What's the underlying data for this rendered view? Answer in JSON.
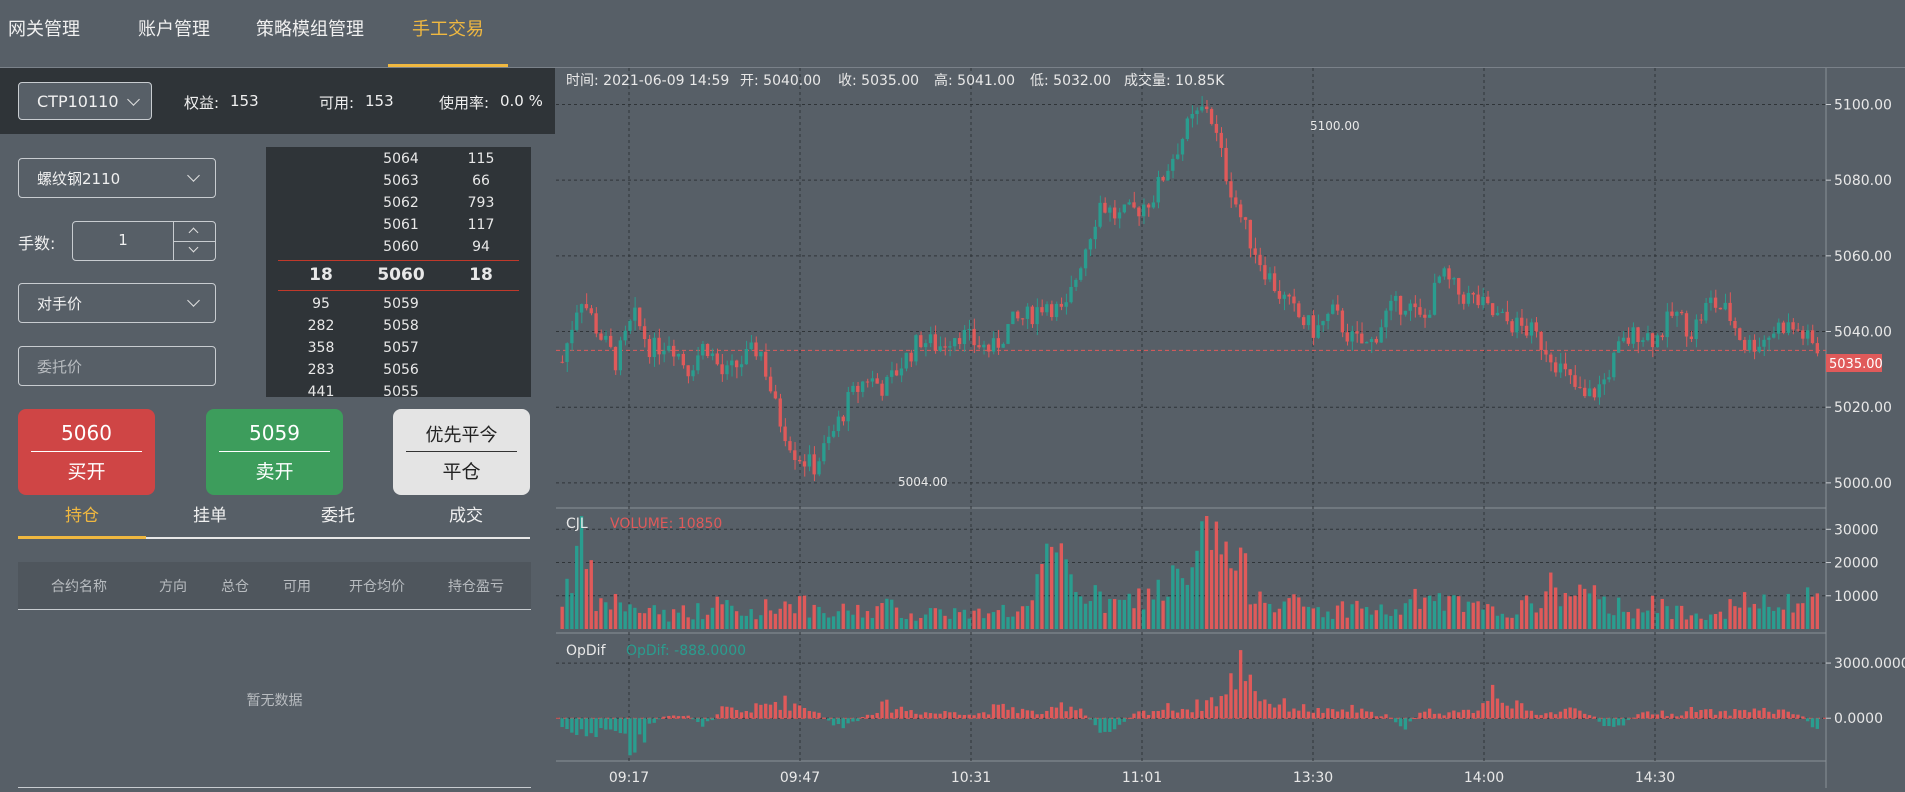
{
  "nav": {
    "items": [
      {
        "label": "网关管理",
        "active": false
      },
      {
        "label": "账户管理",
        "active": false
      },
      {
        "label": "策略模组管理",
        "active": false
      },
      {
        "label": "手工交易",
        "active": true
      }
    ]
  },
  "account": {
    "selected": "CTP10110",
    "equity_label": "权益:",
    "equity_value": "153",
    "available_label": "可用:",
    "available_value": "153",
    "usage_label": "使用率:",
    "usage_value": "0.0 %"
  },
  "order_form": {
    "contract": "螺纹钢2110",
    "qty_label": "手数:",
    "qty_value": "1",
    "price_type": "对手价",
    "price_placeholder": "委托价"
  },
  "orderbook": {
    "asks": [
      {
        "price": "5064",
        "vol": "115"
      },
      {
        "price": "5063",
        "vol": "66"
      },
      {
        "price": "5062",
        "vol": "793"
      },
      {
        "price": "5061",
        "vol": "117"
      },
      {
        "price": "5060",
        "vol": "94"
      }
    ],
    "last": {
      "bid_vol": "18",
      "price": "5060",
      "ask_vol": "18"
    },
    "bids": [
      {
        "vol": "95",
        "price": "5059"
      },
      {
        "vol": "282",
        "price": "5058"
      },
      {
        "vol": "358",
        "price": "5057"
      },
      {
        "vol": "283",
        "price": "5056"
      },
      {
        "vol": "441",
        "price": "5055"
      }
    ]
  },
  "actions": {
    "buy": {
      "price": "5060",
      "label": "买开",
      "color": "#d04646"
    },
    "sell": {
      "price": "5059",
      "label": "卖开",
      "color": "#3f9f5f"
    },
    "close": {
      "top": "优先平今",
      "label": "平仓"
    }
  },
  "position_tabs": [
    {
      "label": "持仓",
      "active": true
    },
    {
      "label": "挂单",
      "active": false
    },
    {
      "label": "委托",
      "active": false
    },
    {
      "label": "成交",
      "active": false
    }
  ],
  "position_table": {
    "columns": [
      "合约名称",
      "方向",
      "总仓",
      "可用",
      "开仓均价",
      "持仓盈亏"
    ],
    "empty_text": "暂无数据"
  },
  "chart_info": {
    "time": "时间: 2021-06-09 14:59",
    "open": "开: 5040.00",
    "close": "收: 5035.00",
    "high": "高: 5041.00",
    "low": "低: 5032.00",
    "volume": "成交量: 10.85K",
    "max_label": "5100.00",
    "min_label": "5004.00",
    "current_label": "5035.00",
    "vol_title": "CJL",
    "vol_value": "VOLUME: 10850",
    "op_title": "OpDif",
    "op_value": "OpDif: -888.0000"
  },
  "chart_data": {
    "type": "candlestick",
    "price_ticks": [
      "5100.00",
      "5080.00",
      "5060.00",
      "5040.00",
      "5020.00",
      "5000.00"
    ],
    "price_range": [
      4996,
      5107
    ],
    "volume_ticks": [
      "30000",
      "20000",
      "10000"
    ],
    "volume_range": [
      0,
      34000
    ],
    "opdif_ticks": [
      "3000.0000",
      "0.0000"
    ],
    "opdif_range": [
      -2000,
      4200
    ],
    "x_ticks": [
      "09:17",
      "09:47",
      "10:31",
      "11:01",
      "13:30",
      "14:00",
      "14:30"
    ],
    "current_price": 5035,
    "colors": {
      "up": "#2a9d8f",
      "down": "#e05a5a",
      "grid": "#2f3438"
    },
    "anchors": [
      5032,
      5050,
      5040,
      5032,
      5044,
      5035,
      5038,
      5030,
      5037,
      5028,
      5032,
      5036,
      5018,
      5008,
      5004,
      5012,
      5022,
      5028,
      5025,
      5032,
      5038,
      5036,
      5040,
      5037,
      5035,
      5042,
      5044,
      5048,
      5044,
      5060,
      5074,
      5070,
      5072,
      5076,
      5086,
      5095,
      5100,
      5082,
      5068,
      5058,
      5050,
      5044,
      5040,
      5045,
      5038,
      5036,
      5045,
      5048,
      5042,
      5055,
      5050,
      5048,
      5044,
      5042,
      5040,
      5035,
      5028,
      5022,
      5026,
      5036,
      5040,
      5038,
      5045,
      5040,
      5048,
      5045,
      5036,
      5038,
      5042,
      5040,
      5035
    ],
    "volume_anchors": [
      9000,
      27000,
      6000,
      9000,
      5000,
      7000,
      4000,
      6000,
      5000,
      8000,
      4000,
      6000,
      7000,
      9000,
      5000,
      4000,
      6000,
      5000,
      7000,
      5000,
      4000,
      6000,
      5000,
      4000,
      7000,
      5000,
      6000,
      18000,
      20000,
      12000,
      8000,
      7000,
      9000,
      11000,
      14000,
      13000,
      32000,
      22000,
      16000,
      11000,
      9000,
      7000,
      6000,
      5000,
      7000,
      6000,
      5000,
      6000,
      10000,
      8000,
      7000,
      6000,
      5000,
      6000,
      7000,
      12000,
      11000,
      10000,
      8000,
      7000,
      6000,
      7000,
      5000,
      6000,
      5000,
      6000,
      8000,
      7000,
      6000,
      9000,
      10850
    ],
    "opdif_anchors": [
      -600,
      -1200,
      -900,
      -700,
      -2000,
      -400,
      300,
      200,
      -500,
      600,
      400,
      700,
      1100,
      900,
      600,
      -300,
      -600,
      300,
      800,
      600,
      400,
      300,
      500,
      200,
      600,
      700,
      400,
      300,
      900,
      600,
      -900,
      -400,
      300,
      500,
      700,
      600,
      1100,
      1400,
      3900,
      1200,
      900,
      700,
      500,
      400,
      600,
      300,
      200,
      -600,
      500,
      400,
      300,
      600,
      2100,
      900,
      400,
      300,
      500,
      600,
      -300,
      -600,
      300,
      400,
      200,
      500,
      400,
      300,
      600,
      500,
      400,
      300,
      -888
    ]
  }
}
